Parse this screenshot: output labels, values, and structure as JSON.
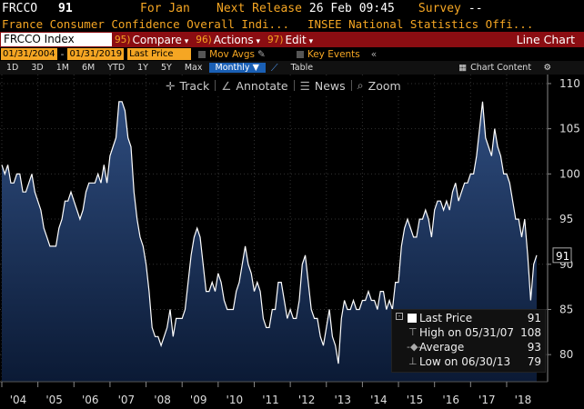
{
  "header": {
    "ticker": "FRCCO",
    "last_value": "91",
    "period_label": "For Jan",
    "next_release_label": "Next Release",
    "next_release_value": "26 Feb 09:45",
    "survey_label": "Survey",
    "survey_value": "--",
    "description": "France Consumer Confidence Overall Indi...",
    "source": "INSEE National Statistics Offi..."
  },
  "toolbar": {
    "security": "FRCCO Index",
    "menus": [
      {
        "num": "95)",
        "label": "Compare"
      },
      {
        "num": "96)",
        "label": "Actions"
      },
      {
        "num": "97)",
        "label": "Edit"
      }
    ],
    "chart_type": "Line Chart"
  },
  "settings": {
    "start_date": "01/31/2004",
    "end_date": "01/31/2019",
    "field": "Last Price",
    "mov_avgs": "Mov Avgs",
    "key_events": "Key Events"
  },
  "periods": {
    "items": [
      "1D",
      "3D",
      "1M",
      "6M",
      "YTD",
      "1Y",
      "5Y",
      "Max"
    ],
    "frequency": "Monthly",
    "table": "Table",
    "chart_content": "Chart Content"
  },
  "chart_tools": {
    "track": "Track",
    "annotate": "Annotate",
    "news": "News",
    "zoom": "Zoom"
  },
  "legend": [
    {
      "label": "Last Price",
      "value": "91"
    },
    {
      "label": "High on 05/31/07",
      "value": "108"
    },
    {
      "label": "Average",
      "value": "93"
    },
    {
      "label": "Low on 06/30/13",
      "value": "79"
    }
  ],
  "colors": {
    "accent_amber": "#f5a623",
    "toolbar_red": "#8b0d12",
    "series_line": "#ffffff",
    "series_fill_top": "#2e4c7e",
    "series_fill_bottom": "#0b1a35"
  },
  "chart_data": {
    "type": "area",
    "title": "",
    "xlabel": "",
    "ylabel": "",
    "ylim": [
      77,
      111
    ],
    "y_ticks": [
      "80",
      "85",
      "90",
      "95",
      "100",
      "105",
      "110"
    ],
    "x_ticks": [
      "'04",
      "'05",
      "'06",
      "'07",
      "'08",
      "'09",
      "'10",
      "'11",
      "'12",
      "'13",
      "'14",
      "'15",
      "'16",
      "'17",
      "'18"
    ],
    "last_value_label": "91",
    "series": [
      {
        "name": "Last Price",
        "x_start": "2004-01",
        "frequency": "monthly",
        "values": [
          101,
          100,
          101,
          99,
          99,
          100,
          100,
          98,
          98,
          99,
          100,
          98,
          97,
          96,
          94,
          93,
          92,
          92,
          92,
          94,
          95,
          97,
          97,
          98,
          97,
          96,
          95,
          96,
          98,
          99,
          99,
          99,
          100,
          99,
          101,
          99,
          102,
          103,
          104,
          108,
          108,
          107,
          104,
          103,
          98,
          95,
          93,
          92,
          90,
          87,
          83,
          82,
          82,
          81,
          82,
          83,
          85,
          82,
          84,
          84,
          84,
          85,
          88,
          91,
          93,
          94,
          93,
          90,
          87,
          87,
          88,
          87,
          89,
          88,
          86,
          85,
          85,
          85,
          87,
          88,
          90,
          92,
          90,
          89,
          87,
          88,
          87,
          84,
          83,
          83,
          85,
          85,
          88,
          88,
          86,
          84,
          85,
          84,
          84,
          86,
          90,
          91,
          88,
          85,
          84,
          84,
          82,
          81,
          83,
          85,
          82,
          81,
          79,
          84,
          86,
          85,
          85,
          86,
          85,
          85,
          86,
          86,
          87,
          86,
          86,
          85,
          87,
          87,
          85,
          86,
          85,
          88,
          88,
          92,
          94,
          95,
          94,
          93,
          93,
          95,
          95,
          96,
          95,
          93,
          96,
          97,
          97,
          96,
          97,
          96,
          98,
          99,
          97,
          98,
          99,
          99,
          100,
          100,
          102,
          105,
          108,
          104,
          103,
          102,
          105,
          103,
          102,
          100,
          100,
          99,
          97,
          95,
          95,
          93,
          95,
          91,
          86,
          90,
          91
        ]
      }
    ]
  }
}
